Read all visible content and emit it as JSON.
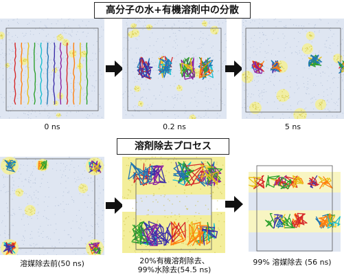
{
  "titles": {
    "top": "高分子の水+有機溶剤中の分散",
    "bottom": "溶剤除去プロセス"
  },
  "captions": {
    "p1": "0 ns",
    "p2": "0.2 ns",
    "p3": "5 ns",
    "p4": "溶媒除去前(50 ns)",
    "p5_line1": "20%有機溶剤除去、",
    "p5_line2": "99%水除去(54.5 ns)",
    "p6": "99% 溶媒除去 (56 ns)"
  },
  "colors": {
    "water": "#dfe6f2",
    "water_dot": "#b9c6dc",
    "solvent": "#f3ee9a",
    "arrow": "#111111"
  },
  "icons": {
    "arrow": "right-arrow-icon"
  }
}
